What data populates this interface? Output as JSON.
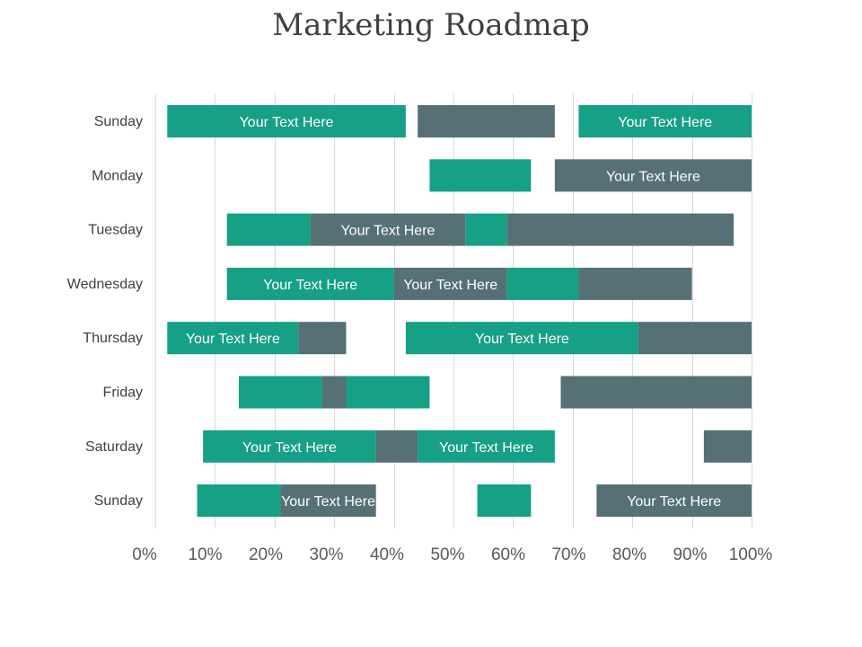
{
  "chart_data": {
    "type": "bar",
    "orientation": "horizontal",
    "title": "Marketing Roadmap",
    "categories": [
      "Sunday",
      "Monday",
      "Tuesday",
      "Wednesday",
      "Thursday",
      "Friday",
      "Saturday",
      "Sunday"
    ],
    "x_ticks": [
      "0%",
      "10%",
      "20%",
      "30%",
      "40%",
      "50%",
      "60%",
      "70%",
      "80%",
      "90%",
      "100%"
    ],
    "xlim": [
      0,
      100
    ],
    "grid": true,
    "colors": {
      "teal": "#16a085",
      "slate": "#557176"
    },
    "rows": [
      [
        {
          "start": 2,
          "end": 42,
          "color": "teal",
          "label": "Your Text Here"
        },
        {
          "start": 44,
          "end": 67,
          "color": "slate",
          "label": ""
        },
        {
          "start": 71,
          "end": 100,
          "color": "teal",
          "label": "Your Text Here"
        }
      ],
      [
        {
          "start": 46,
          "end": 63,
          "color": "teal",
          "label": ""
        },
        {
          "start": 67,
          "end": 100,
          "color": "slate",
          "label": "Your Text Here"
        }
      ],
      [
        {
          "start": 12,
          "end": 26,
          "color": "teal",
          "label": ""
        },
        {
          "start": 26,
          "end": 52,
          "color": "slate",
          "label": "Your Text Here"
        },
        {
          "start": 52,
          "end": 59,
          "color": "teal",
          "label": ""
        },
        {
          "start": 59,
          "end": 97,
          "color": "slate",
          "label": ""
        }
      ],
      [
        {
          "start": 12,
          "end": 40,
          "color": "teal",
          "label": "Your Text Here"
        },
        {
          "start": 40,
          "end": 59,
          "color": "slate",
          "label": "Your Text Here"
        },
        {
          "start": 59,
          "end": 71,
          "color": "teal",
          "label": ""
        },
        {
          "start": 71,
          "end": 90,
          "color": "slate",
          "label": ""
        }
      ],
      [
        {
          "start": 2,
          "end": 24,
          "color": "teal",
          "label": "Your Text Here"
        },
        {
          "start": 24,
          "end": 32,
          "color": "slate",
          "label": ""
        },
        {
          "start": 42,
          "end": 81,
          "color": "teal",
          "label": "Your Text Here"
        },
        {
          "start": 81,
          "end": 100,
          "color": "slate",
          "label": ""
        }
      ],
      [
        {
          "start": 14,
          "end": 28,
          "color": "teal",
          "label": ""
        },
        {
          "start": 28,
          "end": 32,
          "color": "slate",
          "label": ""
        },
        {
          "start": 32,
          "end": 46,
          "color": "teal",
          "label": ""
        },
        {
          "start": 68,
          "end": 100,
          "color": "slate",
          "label": ""
        }
      ],
      [
        {
          "start": 8,
          "end": 37,
          "color": "teal",
          "label": "Your Text Here"
        },
        {
          "start": 37,
          "end": 44,
          "color": "slate",
          "label": ""
        },
        {
          "start": 44,
          "end": 67,
          "color": "teal",
          "label": "Your Text Here"
        },
        {
          "start": 92,
          "end": 100,
          "color": "slate",
          "label": ""
        }
      ],
      [
        {
          "start": 7,
          "end": 21,
          "color": "teal",
          "label": ""
        },
        {
          "start": 21,
          "end": 37,
          "color": "slate",
          "label": "Your Text Here"
        },
        {
          "start": 54,
          "end": 63,
          "color": "teal",
          "label": ""
        },
        {
          "start": 74,
          "end": 100,
          "color": "slate",
          "label": "Your Text Here"
        }
      ]
    ]
  }
}
